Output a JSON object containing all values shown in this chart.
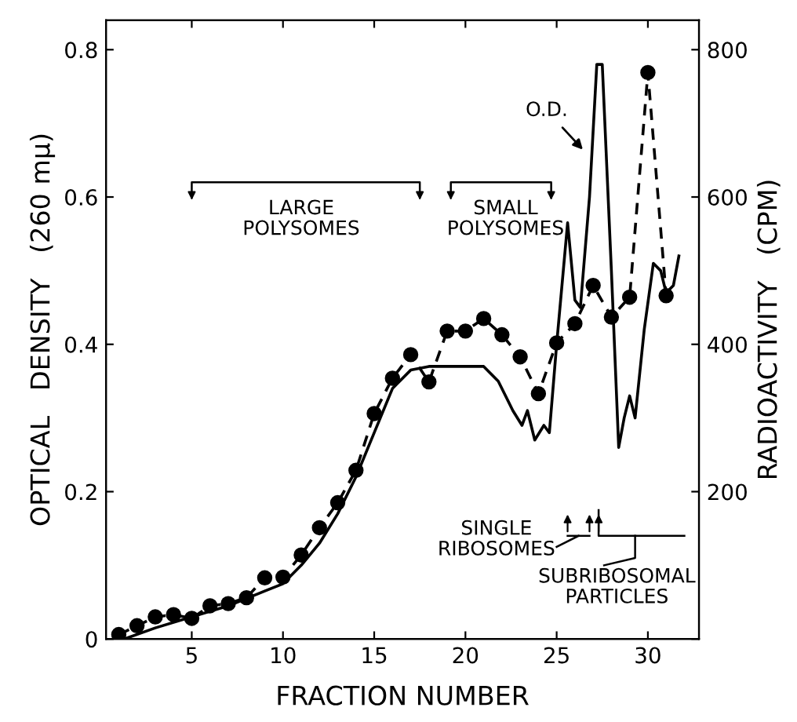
{
  "chart_data": {
    "type": "line",
    "xlabel": "FRACTION NUMBER",
    "ylabel": "OPTICAL   DENSITY   (260 mμ)",
    "y2label": "RADIOACTIVITY   (CPM)",
    "xlim": [
      0.3,
      32.8
    ],
    "xticks": [
      5,
      10,
      15,
      20,
      25,
      30
    ],
    "ylim": [
      0,
      0.84
    ],
    "yticks": [
      0,
      0.2,
      0.4,
      0.6,
      0.8
    ],
    "y2lim": [
      0,
      840
    ],
    "y2ticks": [
      {
        "value": 0,
        "label": null
      },
      200,
      400,
      600,
      800
    ],
    "grid": false,
    "series": [
      {
        "color": "#000000",
        "marker": "none",
        "line_style": "solid",
        "x": [
          1.3,
          3,
          5,
          7,
          8,
          9,
          10,
          11,
          12,
          13,
          14,
          15,
          16,
          17,
          18,
          19,
          20,
          21,
          21.8,
          22.6,
          23.1,
          23.4,
          23.8,
          24.3,
          24.6,
          25,
          25.6,
          26,
          26.3,
          26.8,
          27.2,
          27.5,
          28,
          28.4,
          28.7,
          29,
          29.3,
          29.8,
          30.3,
          30.7,
          31,
          31.4,
          31.7
        ],
        "values": [
          0,
          0.015,
          0.03,
          0.045,
          0.055,
          0.065,
          0.075,
          0.1,
          0.13,
          0.17,
          0.22,
          0.28,
          0.34,
          0.365,
          0.37,
          0.37,
          0.37,
          0.37,
          0.35,
          0.31,
          0.29,
          0.31,
          0.27,
          0.29,
          0.28,
          0.4,
          0.565,
          0.46,
          0.45,
          0.6,
          0.78,
          0.78,
          0.5,
          0.26,
          0.3,
          0.33,
          0.3,
          0.42,
          0.51,
          0.5,
          0.47,
          0.48,
          0.52
        ]
      },
      {
        "axis": "y2",
        "color": "#000000",
        "marker": "circle",
        "line_style": "dashed",
        "x": [
          1,
          2,
          3,
          4,
          5,
          6,
          7,
          8,
          9,
          10,
          11,
          12,
          13,
          14,
          15,
          16,
          17,
          18,
          19,
          20,
          21,
          22,
          23,
          24,
          25,
          26,
          27,
          28,
          29,
          30,
          31
        ],
        "values": [
          6,
          18,
          30,
          33,
          28,
          45,
          48,
          56,
          83,
          84,
          114,
          151,
          185,
          229,
          306,
          354,
          386,
          349,
          418,
          418,
          435,
          413,
          383,
          333,
          402,
          428,
          480,
          437,
          464,
          769,
          466
        ]
      }
    ],
    "annotations": [
      {
        "text": "O.D.",
        "x": 26.6,
        "y": 0.66
      },
      "LARGE\nPOLYSOMES",
      "SMALL\nPOLYSOMES",
      "SINGLE\nRIBOSOMES",
      "SUBRIBOSOMAL\nPARTICLES"
    ]
  }
}
